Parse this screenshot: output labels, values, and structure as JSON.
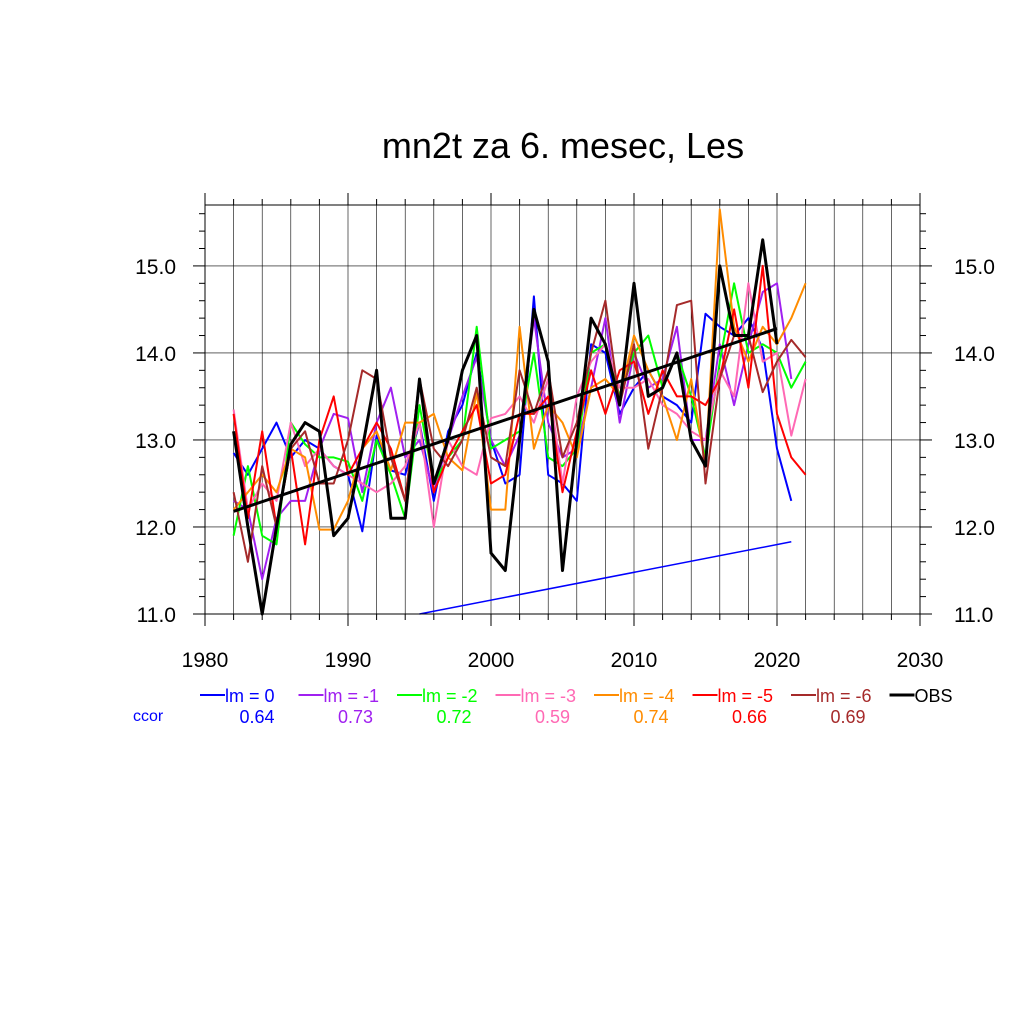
{
  "chart_data": {
    "type": "line",
    "title": "mn2t za 6. mesec, Les",
    "xlim": [
      1980,
      2030
    ],
    "ylim": [
      11.0,
      15.7
    ],
    "x_ticks": [
      1980,
      1990,
      2000,
      2010,
      2020,
      2030
    ],
    "x_tick_labels": [
      "1980",
      "1990",
      "2000",
      "2010",
      "2020",
      "2030"
    ],
    "y_ticks": [
      11.0,
      12.0,
      13.0,
      14.0,
      15.0
    ],
    "y_tick_labels": [
      "11.0",
      "12.0",
      "13.0",
      "14.0",
      "15.0"
    ],
    "grid": true,
    "legend_placement": "bottom",
    "ccor_label": "ccor",
    "series": [
      {
        "name": "lm = 0",
        "color": "#0000ff",
        "ccor": "0.64",
        "x": [
          1982,
          1983,
          1984,
          1985,
          1986,
          1987,
          1988,
          1989,
          1990,
          1991,
          1992,
          1993,
          1994,
          1995,
          1996,
          1997,
          1998,
          1999,
          2000,
          2001,
          2002,
          2003,
          2004,
          2005,
          2006,
          2007,
          2008,
          2009,
          2010,
          2011,
          2012,
          2013,
          2014,
          2015,
          2016,
          2017,
          2018,
          2019,
          2020,
          2021
        ],
        "y": [
          12.85,
          12.6,
          12.9,
          13.2,
          12.8,
          13.0,
          12.9,
          12.7,
          12.6,
          11.95,
          13.05,
          12.65,
          12.6,
          13.2,
          12.3,
          13.1,
          13.4,
          14.0,
          13.0,
          12.5,
          12.6,
          14.65,
          12.6,
          12.5,
          12.3,
          14.1,
          14.0,
          13.3,
          13.6,
          13.8,
          13.5,
          13.4,
          13.2,
          14.45,
          14.3,
          14.2,
          14.4,
          14.05,
          12.9,
          12.3
        ]
      },
      {
        "name": "lm = -1",
        "color": "#a020f0",
        "ccor": "0.73",
        "x": [
          1982,
          1983,
          1984,
          1985,
          1986,
          1987,
          1988,
          1989,
          1990,
          1991,
          1992,
          1993,
          1994,
          1995,
          1996,
          1997,
          1998,
          1999,
          2000,
          2001,
          2002,
          2003,
          2004,
          2005,
          2006,
          2007,
          2008,
          2009,
          2010,
          2011,
          2012,
          2013,
          2014,
          2015,
          2016,
          2017,
          2018,
          2019,
          2020,
          2021
        ],
        "y": [
          12.3,
          12.2,
          11.4,
          12.1,
          12.3,
          12.3,
          12.9,
          13.3,
          13.25,
          12.4,
          13.2,
          13.6,
          12.8,
          13.0,
          12.4,
          13.0,
          13.5,
          13.95,
          13.0,
          12.7,
          13.05,
          14.4,
          13.2,
          12.8,
          12.9,
          13.6,
          14.4,
          13.2,
          14.0,
          13.6,
          13.7,
          14.3,
          13.0,
          13.0,
          14.1,
          13.4,
          14.1,
          14.7,
          14.8,
          13.7
        ]
      },
      {
        "name": "lm = -2",
        "color": "#00ff00",
        "ccor": "0.72",
        "x": [
          1982,
          1983,
          1984,
          1985,
          1986,
          1987,
          1988,
          1989,
          1990,
          1991,
          1992,
          1993,
          1994,
          1995,
          1996,
          1997,
          1998,
          1999,
          2000,
          2001,
          2002,
          2003,
          2004,
          2005,
          2006,
          2007,
          2008,
          2009,
          2010,
          2011,
          2012,
          2013,
          2014,
          2015,
          2016,
          2017,
          2018,
          2019,
          2020,
          2021,
          2022
        ],
        "y": [
          11.9,
          12.7,
          11.9,
          11.8,
          13.2,
          12.95,
          12.8,
          12.8,
          12.75,
          12.3,
          13.0,
          12.6,
          12.1,
          13.4,
          12.5,
          12.8,
          13.0,
          14.3,
          12.9,
          13.0,
          13.1,
          14.0,
          12.8,
          12.7,
          12.9,
          14.0,
          14.1,
          13.5,
          14.0,
          14.2,
          13.6,
          14.0,
          13.5,
          12.8,
          13.9,
          14.8,
          14.0,
          14.1,
          14.0,
          13.6,
          13.9
        ]
      },
      {
        "name": "lm = -3",
        "color": "#ff69b4",
        "ccor": "0.59",
        "x": [
          1982,
          1983,
          1984,
          1985,
          1986,
          1987,
          1988,
          1989,
          1990,
          1991,
          1992,
          1993,
          1994,
          1995,
          1996,
          1997,
          1998,
          1999,
          2000,
          2001,
          2002,
          2003,
          2004,
          2005,
          2006,
          2007,
          2008,
          2009,
          2010,
          2011,
          2012,
          2013,
          2014,
          2015,
          2016,
          2017,
          2018,
          2019,
          2020,
          2021,
          2022
        ],
        "y": [
          13.35,
          12.2,
          12.5,
          12.3,
          13.2,
          12.7,
          12.9,
          12.7,
          12.6,
          12.5,
          12.4,
          12.5,
          12.7,
          13.2,
          12.0,
          13.0,
          12.7,
          12.6,
          13.25,
          13.3,
          13.5,
          13.2,
          13.7,
          12.5,
          13.5,
          13.9,
          14.1,
          13.6,
          13.6,
          13.7,
          13.4,
          13.3,
          13.1,
          13.0,
          13.8,
          13.5,
          14.8,
          13.9,
          14.0,
          13.05,
          13.7
        ]
      },
      {
        "name": "lm = -4",
        "color": "#ff8c00",
        "ccor": "0.74",
        "x": [
          1982,
          1983,
          1984,
          1985,
          1986,
          1987,
          1988,
          1989,
          1990,
          1991,
          1992,
          1993,
          1994,
          1995,
          1996,
          1997,
          1998,
          1999,
          2000,
          2001,
          2002,
          2003,
          2004,
          2005,
          2006,
          2007,
          2008,
          2009,
          2010,
          2011,
          2012,
          2013,
          2014,
          2015,
          2016,
          2017,
          2018,
          2019,
          2020,
          2021,
          2022
        ],
        "y": [
          12.2,
          12.4,
          12.6,
          12.4,
          12.9,
          12.8,
          11.97,
          11.97,
          12.3,
          12.9,
          13.1,
          12.65,
          13.2,
          13.2,
          13.3,
          12.8,
          12.65,
          13.55,
          12.2,
          12.2,
          14.3,
          12.9,
          13.4,
          13.2,
          12.8,
          13.6,
          13.7,
          13.5,
          14.2,
          13.8,
          13.5,
          13.0,
          13.7,
          12.7,
          15.65,
          14.3,
          13.9,
          14.3,
          14.1,
          14.4,
          14.8
        ]
      },
      {
        "name": "lm = -5",
        "color": "#ff0000",
        "ccor": "0.66",
        "x": [
          1982,
          1983,
          1984,
          1985,
          1986,
          1987,
          1988,
          1989,
          1990,
          1991,
          1992,
          1993,
          1994,
          1995,
          1996,
          1997,
          1998,
          1999,
          2000,
          2001,
          2002,
          2003,
          2004,
          2005,
          2006,
          2007,
          2008,
          2009,
          2010,
          2011,
          2012,
          2013,
          2014,
          2015,
          2016,
          2017,
          2018,
          2019,
          2020,
          2021,
          2022
        ],
        "y": [
          13.3,
          12.1,
          13.1,
          12.0,
          12.9,
          11.8,
          13.0,
          13.5,
          12.6,
          12.9,
          13.2,
          12.9,
          12.3,
          13.7,
          12.4,
          12.8,
          13.1,
          13.4,
          12.5,
          12.6,
          13.3,
          13.3,
          13.5,
          12.4,
          13.1,
          13.8,
          13.3,
          13.8,
          13.9,
          13.3,
          13.8,
          13.5,
          13.5,
          13.4,
          13.7,
          14.5,
          13.6,
          15.0,
          13.3,
          12.8,
          12.6
        ]
      },
      {
        "name": "lm = -6",
        "color": "#a52a2a",
        "ccor": "0.69",
        "x": [
          1982,
          1983,
          1984,
          1985,
          1986,
          1987,
          1988,
          1989,
          1990,
          1991,
          1992,
          1993,
          1994,
          1995,
          1996,
          1997,
          1998,
          1999,
          2000,
          2001,
          2002,
          2003,
          2004,
          2005,
          2006,
          2007,
          2008,
          2009,
          2010,
          2011,
          2012,
          2013,
          2014,
          2015,
          2016,
          2017,
          2018,
          2019,
          2020,
          2021,
          2022
        ],
        "y": [
          12.4,
          11.6,
          12.7,
          12.0,
          12.9,
          13.1,
          12.5,
          12.5,
          13.0,
          13.8,
          13.7,
          12.8,
          12.3,
          13.7,
          12.9,
          12.7,
          13.0,
          13.6,
          12.8,
          12.7,
          13.8,
          13.3,
          13.8,
          12.8,
          13.2,
          14.0,
          14.6,
          13.4,
          14.1,
          12.9,
          13.6,
          14.55,
          14.6,
          12.5,
          13.7,
          14.2,
          14.2,
          13.55,
          13.9,
          14.15,
          13.95
        ]
      },
      {
        "name": "OBS",
        "color": "#000000",
        "ccor": "",
        "x": [
          1982,
          1983,
          1984,
          1985,
          1986,
          1987,
          1988,
          1989,
          1990,
          1991,
          1992,
          1993,
          1994,
          1995,
          1996,
          1997,
          1998,
          1999,
          2000,
          2001,
          2002,
          2003,
          2004,
          2005,
          2006,
          2007,
          2008,
          2009,
          2010,
          2011,
          2012,
          2013,
          2014,
          2015,
          2016,
          2017,
          2018,
          2019,
          2020
        ],
        "y": [
          13.1,
          12.0,
          11.0,
          12.0,
          12.95,
          13.2,
          13.1,
          11.9,
          12.1,
          12.9,
          13.8,
          12.1,
          12.1,
          13.7,
          12.5,
          13.0,
          13.8,
          14.2,
          11.7,
          11.5,
          13.0,
          14.5,
          13.9,
          11.5,
          13.0,
          14.4,
          14.1,
          13.4,
          14.8,
          13.5,
          13.6,
          14.0,
          13.0,
          12.7,
          15.0,
          14.2,
          14.2,
          15.3,
          14.1
        ]
      }
    ],
    "trend_lines": [
      {
        "series": "OBS",
        "color": "#000000",
        "x": [
          1982,
          2020
        ],
        "y": [
          12.18,
          14.28
        ]
      },
      {
        "series": "lm = 0",
        "color": "#0000ff",
        "x": [
          1995,
          2021
        ],
        "y": [
          11.0,
          11.83
        ]
      }
    ]
  }
}
